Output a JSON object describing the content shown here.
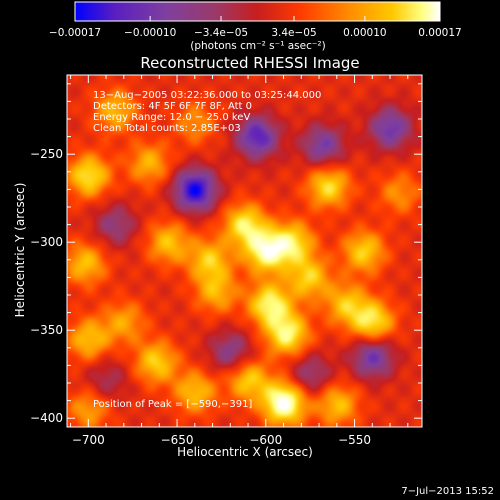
{
  "chart_data": {
    "type": "heatmap",
    "title": "Reconstructed RHESSI Image",
    "xlabel": "Heliocentric X (arcsec)",
    "ylabel": "Heliocentric Y (arcsec)",
    "xlim": [
      -712,
      -512
    ],
    "ylim": [
      -405,
      -205
    ],
    "x_ticks": [
      -700,
      -650,
      -600,
      -550
    ],
    "y_ticks": [
      -250,
      -300,
      -350,
      -400
    ],
    "x_tick_labels": [
      "−700",
      "−650",
      "−600",
      "−550"
    ],
    "y_tick_labels": [
      "−250",
      "−300",
      "−350",
      "−400"
    ],
    "colorbar": {
      "ticks": [
        -0.00017,
        -0.0001,
        -3.4e-05,
        3.4e-05,
        0.0001,
        0.00017
      ],
      "tick_labels": [
        "−0.00017",
        "−0.00010",
        "−3.4e−05",
        "3.4e−05",
        "0.00010",
        "0.00017"
      ],
      "unit_label": "(photons cm⁻² s⁻¹ asec⁻²)",
      "range": [
        -0.00017,
        0.00017
      ],
      "colors": [
        "#0000ff",
        "#5a1fc0",
        "#7f3f9f",
        "#9a3a6a",
        "#c81e1e",
        "#ff3c00",
        "#ff8c00",
        "#ffc800",
        "#ffff80",
        "#ffffff"
      ]
    },
    "annotations": [
      "13−Aug−2005 03:22:36.000 to 03:25:44.000",
      "Detectors: 4F 5F 6F 7F 8F, Att 0",
      "Energy Range: 12.0 − 25.0 keV",
      "Clean     Total counts: 2.85E+03"
    ],
    "peak_label": "Position of Peak = [−590,−391]",
    "peak": [
      -590,
      -391
    ],
    "sources": [
      {
        "x": -685,
        "y": -225,
        "v": 8.5e-05
      },
      {
        "x": -700,
        "y": -262,
        "v": 0.000115
      },
      {
        "x": -666,
        "y": -255,
        "v": 8e-05
      },
      {
        "x": -640,
        "y": -232,
        "v": 6e-05
      },
      {
        "x": -702,
        "y": -312,
        "v": 9e-05
      },
      {
        "x": -655,
        "y": -300,
        "v": 9e-05
      },
      {
        "x": -632,
        "y": -310,
        "v": 9.5e-05
      },
      {
        "x": -628,
        "y": -328,
        "v": 8e-05
      },
      {
        "x": -612,
        "y": -290,
        "v": 0.00012
      },
      {
        "x": -600,
        "y": -305,
        "v": 0.00014
      },
      {
        "x": -585,
        "y": -300,
        "v": 0.00011
      },
      {
        "x": -598,
        "y": -335,
        "v": 0.00013
      },
      {
        "x": -588,
        "y": -352,
        "v": 0.00013
      },
      {
        "x": -576,
        "y": -320,
        "v": 0.0001
      },
      {
        "x": -565,
        "y": -268,
        "v": 0.00011
      },
      {
        "x": -545,
        "y": -305,
        "v": 0.0001
      },
      {
        "x": -555,
        "y": -335,
        "v": 9e-05
      },
      {
        "x": -540,
        "y": -345,
        "v": 0.00012
      },
      {
        "x": -525,
        "y": -272,
        "v": 6e-05
      },
      {
        "x": -700,
        "y": -355,
        "v": 9e-05
      },
      {
        "x": -680,
        "y": -345,
        "v": 7e-05
      },
      {
        "x": -662,
        "y": -368,
        "v": 0.0001
      },
      {
        "x": -640,
        "y": -385,
        "v": 9e-05
      },
      {
        "x": -610,
        "y": -378,
        "v": 0.0001
      },
      {
        "x": -590,
        "y": -391,
        "v": 0.00017
      },
      {
        "x": -560,
        "y": -392,
        "v": 9e-05
      },
      {
        "x": -700,
        "y": -395,
        "v": 7e-05
      },
      {
        "x": -640,
        "y": -270,
        "v": -0.00016
      },
      {
        "x": -605,
        "y": -240,
        "v": -0.00013
      },
      {
        "x": -568,
        "y": -245,
        "v": -0.0001
      },
      {
        "x": -530,
        "y": -235,
        "v": -0.00011
      },
      {
        "x": -685,
        "y": -290,
        "v": -7e-05
      },
      {
        "x": -540,
        "y": -365,
        "v": -0.00011
      },
      {
        "x": -620,
        "y": -362,
        "v": -8e-05
      },
      {
        "x": -690,
        "y": -378,
        "v": -5e-05
      },
      {
        "x": -575,
        "y": -375,
        "v": -7e-05
      }
    ]
  },
  "footer": {
    "timestamp": "7−Jul−2013 15:52"
  }
}
